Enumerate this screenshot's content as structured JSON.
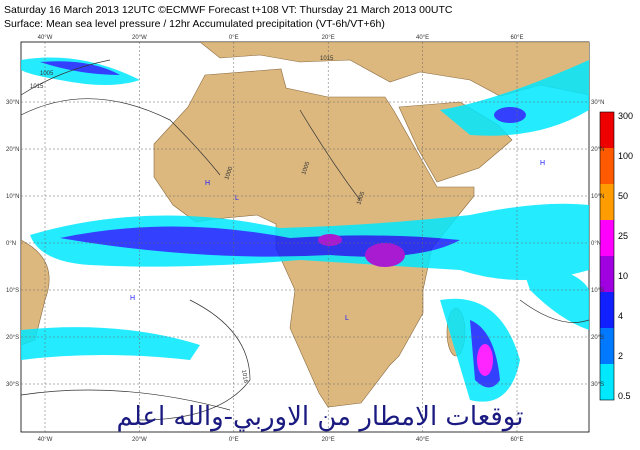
{
  "header": {
    "line1": "Saturday 16 March 2013 12UTC ©ECMWF Forecast t+108 VT: Thursday 21 March 2013 00UTC",
    "line2": "Surface: Mean sea level pressure / 12hr Accumulated precipitation (VT-6h/VT+6h)"
  },
  "longitudes": [
    "40°W",
    "20°W",
    "0°E",
    "20°E",
    "40°E",
    "60°E"
  ],
  "latitudes": [
    "30°N",
    "20°N",
    "10°N",
    "0°N",
    "10°S",
    "20°S",
    "30°S"
  ],
  "isobar_labels": [
    "1005",
    "1015",
    "1000",
    "1005",
    "1005",
    "1015",
    "1016"
  ],
  "pressure_markers": [
    "H",
    "L",
    "H",
    "L",
    "H"
  ],
  "colorbar": {
    "labels": [
      "300",
      "100",
      "50",
      "25",
      "10",
      "4",
      "2",
      "0.5"
    ],
    "colors": [
      "#ee0000",
      "#ff5a00",
      "#ff9d00",
      "#ff00ff",
      "#a000e0",
      "#1020ff",
      "#0078ff",
      "#00e8ff"
    ]
  },
  "overlay_text": "توقعات الامطار من الاوربي-والله اعلم"
}
